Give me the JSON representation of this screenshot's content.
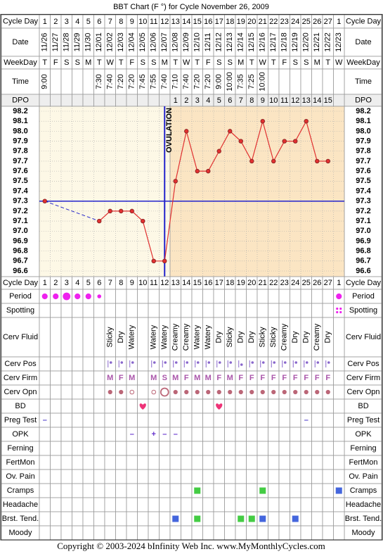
{
  "title": "BBT Chart (F °) for Cycle November 26, 2009",
  "footer": "Copyright © 2003-2024 bInfinity Web Inc.    www.MyMonthlyCycles.com",
  "labels": {
    "cycle_day": "Cycle Day",
    "date": "Date",
    "weekday": "WeekDay",
    "time": "Time",
    "dpo": "DPO"
  },
  "dates": [
    "11/26",
    "11/27",
    "11/28",
    "11/29",
    "11/30",
    "12/01",
    "12/02",
    "12/03",
    "12/04",
    "12/05",
    "12/06",
    "12/07",
    "12/08",
    "12/09",
    "12/10",
    "12/11",
    "12/12",
    "12/13",
    "12/14",
    "12/15",
    "12/16",
    "12/17",
    "12/18",
    "12/19",
    "12/20",
    "12/21",
    "12/22",
    "12/23"
  ],
  "weekdays": [
    "T",
    "F",
    "S",
    "S",
    "M",
    "T",
    "W",
    "T",
    "F",
    "S",
    "S",
    "M",
    "T",
    "W",
    "T",
    "F",
    "S",
    "S",
    "M",
    "T",
    "W",
    "T",
    "F",
    "S",
    "S",
    "M",
    "T",
    "W"
  ],
  "times": [
    "9:00",
    null,
    null,
    null,
    null,
    "7:30",
    "7:40",
    "7:20",
    "7:20",
    "7:45",
    "7:55",
    "7:40",
    "7:10",
    "7:40",
    "7:20",
    "7:20",
    "9:00",
    "10:00",
    "7:35",
    "7:25",
    "10:00",
    null,
    null,
    null,
    null,
    null,
    null,
    null
  ],
  "dpo": [
    null,
    null,
    null,
    null,
    null,
    null,
    null,
    null,
    null,
    null,
    null,
    null,
    1,
    2,
    3,
    4,
    5,
    6,
    7,
    8,
    9,
    10,
    11,
    12,
    13,
    14,
    15,
    null
  ],
  "chart_data": {
    "type": "line",
    "categories": [
      1,
      2,
      3,
      4,
      5,
      6,
      7,
      8,
      9,
      10,
      11,
      12,
      13,
      14,
      15,
      16,
      17,
      18,
      19,
      20,
      21,
      22,
      23,
      24,
      25,
      26,
      27,
      1
    ],
    "values": [
      97.3,
      null,
      null,
      null,
      null,
      97.1,
      97.2,
      97.2,
      97.2,
      97.1,
      96.7,
      96.7,
      97.5,
      98.0,
      97.6,
      97.6,
      97.8,
      98.0,
      97.9,
      97.7,
      98.1,
      97.7,
      97.9,
      97.9,
      98.1,
      97.7,
      97.7,
      null
    ],
    "color": "#e03030",
    "ylim": [
      96.6,
      98.2
    ],
    "yticks": [
      96.6,
      96.7,
      96.8,
      96.9,
      {
        "value": 97.0,
        "label": "97.0"
      },
      97.1,
      97.2,
      97.3,
      97.4,
      97.5,
      97.6,
      97.7,
      97.8,
      97.9,
      {
        "value": 98.0,
        "label": "98.0"
      },
      98.1,
      98.2
    ],
    "grid": true,
    "coverline": 97.3,
    "ovulation_day": 12,
    "ovulation_label": "OVULATION",
    "line_color": "#2222cc"
  },
  "rows": [
    {
      "label": "Period",
      "kind": "dot",
      "color": "#ee22ee",
      "values": [
        2,
        2,
        3,
        2,
        2,
        1,
        null,
        null,
        null,
        null,
        null,
        null,
        null,
        null,
        null,
        null,
        null,
        null,
        null,
        null,
        null,
        null,
        null,
        null,
        null,
        null,
        null,
        2
      ]
    },
    {
      "label": "Spotting",
      "kind": "spots",
      "color": "#ee22ee",
      "values": [
        null,
        null,
        null,
        null,
        null,
        null,
        null,
        null,
        null,
        null,
        null,
        null,
        null,
        null,
        null,
        null,
        null,
        null,
        null,
        null,
        null,
        null,
        null,
        null,
        null,
        null,
        null,
        1
      ]
    },
    {
      "label": "Cerv Fluid",
      "kind": "text",
      "values": [
        null,
        null,
        null,
        null,
        null,
        null,
        "Sticky",
        "Dry",
        "Watery",
        null,
        "Watery",
        "Watery",
        "Creamy",
        "Creamy",
        "Watery",
        "Watery",
        "Dry",
        "Sticky",
        "Dry",
        "Dry",
        "Sticky",
        "Sticky",
        "Creamy",
        "Dry",
        "Dry",
        "Creamy",
        "Dry",
        null
      ]
    },
    {
      "label": "Cerv Pos",
      "kind": "pos",
      "color": "#8866cc",
      "values": [
        null,
        null,
        null,
        null,
        null,
        null,
        2,
        2,
        2,
        null,
        2,
        2,
        2,
        2,
        2,
        2,
        2,
        2,
        1,
        2,
        2,
        2,
        2,
        2,
        2,
        2,
        2,
        null
      ]
    },
    {
      "label": "Cerv Firm",
      "kind": "letter",
      "color": "#aa55aa",
      "values": [
        null,
        null,
        null,
        null,
        null,
        null,
        "M",
        "F",
        "M",
        null,
        "M",
        "S",
        "M",
        "F",
        "M",
        "M",
        "F",
        "M",
        "F",
        "F",
        "F",
        "F",
        "F",
        "F",
        "F",
        "F",
        "F",
        null
      ]
    },
    {
      "label": "Cerv Opn",
      "kind": "opening",
      "color": "#bb6677",
      "values": [
        null,
        null,
        null,
        null,
        null,
        null,
        1,
        1,
        2,
        null,
        2,
        3,
        1,
        1,
        1,
        1,
        1,
        1,
        1,
        1,
        1,
        1,
        1,
        1,
        1,
        1,
        1,
        null
      ]
    },
    {
      "label": "BD",
      "kind": "heart",
      "color": "#ee3377",
      "values": [
        null,
        null,
        null,
        null,
        null,
        null,
        null,
        null,
        null,
        1,
        null,
        null,
        null,
        null,
        null,
        null,
        1,
        null,
        null,
        null,
        null,
        null,
        null,
        null,
        null,
        null,
        null,
        null
      ]
    },
    {
      "label": "Preg Test",
      "kind": "letter",
      "color": "#5544cc",
      "values": [
        "–",
        null,
        null,
        null,
        null,
        null,
        null,
        null,
        null,
        null,
        null,
        null,
        null,
        null,
        null,
        null,
        null,
        null,
        null,
        null,
        null,
        null,
        null,
        null,
        "–",
        null,
        null,
        null
      ]
    },
    {
      "label": "OPK",
      "kind": "letter",
      "color": "#6633cc",
      "values": [
        null,
        null,
        null,
        null,
        null,
        null,
        null,
        null,
        "–",
        null,
        "+",
        "–",
        "–",
        null,
        null,
        null,
        null,
        null,
        null,
        null,
        null,
        null,
        null,
        null,
        null,
        null,
        null,
        null
      ]
    },
    {
      "label": "Ferning",
      "kind": "none"
    },
    {
      "label": "FertMon",
      "kind": "none"
    },
    {
      "label": "Ov. Pain",
      "kind": "none"
    },
    {
      "label": "Cramps",
      "kind": "square",
      "colors": [
        "#44cc44",
        "#4466dd"
      ],
      "values": [
        null,
        null,
        null,
        null,
        null,
        null,
        null,
        null,
        null,
        null,
        null,
        null,
        null,
        null,
        1,
        null,
        null,
        null,
        null,
        null,
        1,
        null,
        null,
        null,
        null,
        null,
        null,
        2
      ]
    },
    {
      "label": "Headache",
      "kind": "none"
    },
    {
      "label": "Brst. Tend.",
      "kind": "square",
      "colors": [
        "#44cc44",
        "#4466dd"
      ],
      "values": [
        null,
        null,
        null,
        null,
        null,
        null,
        null,
        null,
        null,
        null,
        null,
        null,
        2,
        null,
        1,
        null,
        null,
        null,
        1,
        1,
        2,
        null,
        null,
        2,
        null,
        null,
        null,
        null
      ]
    },
    {
      "label": "Moody",
      "kind": "none"
    }
  ]
}
